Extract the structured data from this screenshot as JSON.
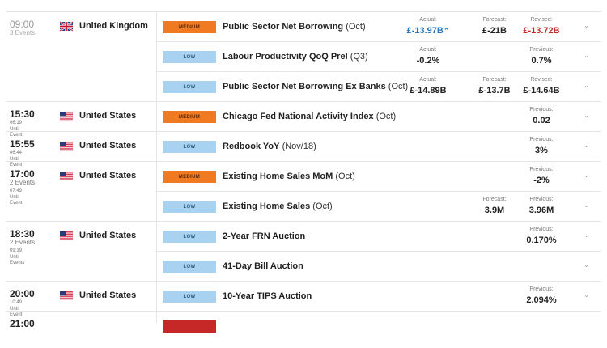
{
  "groups": [
    {
      "time": "09:00",
      "past": true,
      "sub": [
        "3 Events"
      ],
      "sub_mode": "events",
      "country": "United Kingdom",
      "flag": "uk",
      "rows": [
        {
          "impact": "MEDIUM",
          "impact_class": "medium",
          "name": "Public Sector Net Borrowing",
          "period": "(Oct)",
          "values": [
            {
              "label": "Actual:",
              "value": "£-13.97B",
              "color": "blue",
              "arrow": "⌃"
            },
            {
              "label": "Forecast:",
              "value": "£-21B"
            },
            {
              "label": "Revised:",
              "value": "£-13.72B",
              "color": "red"
            }
          ]
        },
        {
          "impact": "LOW",
          "impact_class": "low",
          "name": "Labour Productivity QoQ Prel",
          "period": "(Q3)",
          "values": [
            {
              "label": "Actual:",
              "value": "-0.2%"
            },
            null,
            {
              "label": "Previous:",
              "value": "0.7%"
            }
          ]
        },
        {
          "impact": "LOW",
          "impact_class": "low",
          "name": "Public Sector Net Borrowing Ex Banks",
          "period": "(Oct)",
          "values": [
            {
              "label": "Actual:",
              "value": "£-14.89B"
            },
            {
              "label": "Forecast:",
              "value": "£-13.7B"
            },
            {
              "label": "Revised:",
              "value": "£-14.64B"
            }
          ]
        }
      ]
    },
    {
      "time": "15:30",
      "sub": [
        "06:19",
        "Until",
        "Event"
      ],
      "country": "United States",
      "flag": "us",
      "rows": [
        {
          "impact": "MEDIUM",
          "impact_class": "medium",
          "name": "Chicago Fed National Activity Index",
          "period": "(Oct)",
          "values": [
            null,
            null,
            {
              "label": "Previous:",
              "value": "0.02"
            }
          ]
        }
      ]
    },
    {
      "time": "15:55",
      "sub": [
        "06:44",
        "Until",
        "Event"
      ],
      "country": "United States",
      "flag": "us",
      "rows": [
        {
          "impact": "LOW",
          "impact_class": "low",
          "name": "Redbook YoY",
          "period": "(Nov/18)",
          "values": [
            null,
            null,
            {
              "label": "Previous:",
              "value": "3%"
            }
          ]
        }
      ]
    },
    {
      "time": "17:00",
      "sub": [
        "2 Events",
        "07:49",
        "Until",
        "Event"
      ],
      "sub_mode": "mixed",
      "country": "United States",
      "flag": "us",
      "rows": [
        {
          "impact": "MEDIUM",
          "impact_class": "medium",
          "name": "Existing Home Sales MoM",
          "period": "(Oct)",
          "values": [
            null,
            null,
            {
              "label": "Previous:",
              "value": "-2%"
            }
          ]
        },
        {
          "impact": "LOW",
          "impact_class": "low",
          "name": "Existing Home Sales",
          "period": "(Oct)",
          "values": [
            null,
            {
              "label": "Forecast:",
              "value": "3.9M"
            },
            {
              "label": "Previous:",
              "value": "3.96M"
            }
          ]
        }
      ]
    },
    {
      "time": "18:30",
      "sub": [
        "2 Events",
        "09:19",
        "Until",
        "Events"
      ],
      "sub_mode": "mixed",
      "country": "United States",
      "flag": "us",
      "rows": [
        {
          "impact": "LOW",
          "impact_class": "low",
          "name": "2-Year FRN Auction",
          "period": "",
          "values": [
            null,
            null,
            {
              "label": "Previous:",
              "value": "0.170%"
            }
          ]
        },
        {
          "impact": "LOW",
          "impact_class": "low",
          "name": "41-Day Bill Auction",
          "period": "",
          "values": [
            null,
            null,
            null
          ]
        }
      ]
    },
    {
      "time": "20:00",
      "sub": [
        "10:49",
        "Until",
        "Event"
      ],
      "country": "United States",
      "flag": "us",
      "rows": [
        {
          "impact": "LOW",
          "impact_class": "low",
          "name": "10-Year TIPS Auction",
          "period": "",
          "values": [
            null,
            null,
            {
              "label": "Previous:",
              "value": "2.094%"
            }
          ]
        }
      ]
    },
    {
      "time": "21:00",
      "sub": [],
      "country": "",
      "flag": "",
      "rows": [
        {
          "impact": "",
          "impact_class": "high",
          "name": "",
          "period": "",
          "values": [
            null,
            null,
            null
          ]
        }
      ]
    }
  ],
  "colors": {
    "medium": "#ef7a22",
    "low": "#a8d2ef",
    "actual_blue": "#2a76b8",
    "revised_red": "#c62828"
  }
}
